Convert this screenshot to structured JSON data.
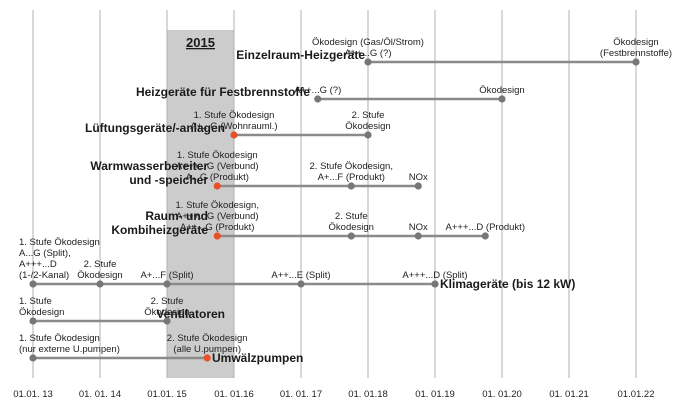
{
  "highlight_label": "2015",
  "axis_labels": [
    "01.01. 13",
    "01. 01. 14",
    "01.01. 15",
    "01. 01.16",
    "01. 01. 17",
    "01. 01.18",
    "01. 01.19",
    "01. 01.20",
    "01. 01.21",
    "01.01.22"
  ],
  "colors": {
    "line": "#8a8a8a",
    "grid": "#b0b0b0",
    "highlight": "#cccccc",
    "milestone": "#777777",
    "current": "#e8502a"
  },
  "rows": [
    {
      "name": "einzelraum",
      "label_lines": [
        "Einzelraum-Heizgeräte"
      ],
      "start": 5,
      "end": 9,
      "milestones": [
        {
          "t": 5,
          "color": "grey",
          "text": [
            "Ökodesign (Gas/Öl/Strom)",
            "A++...G (?)"
          ]
        },
        {
          "t": 9,
          "color": "grey",
          "text": [
            "Ökodesign",
            "(Festbrennstoffe)"
          ]
        }
      ]
    },
    {
      "name": "festbrennstoffe",
      "label_lines": [
        "Heizgeräte für Festbrennstoffe"
      ],
      "start": 4.25,
      "end": 7,
      "milestones": [
        {
          "t": 4.25,
          "color": "grey",
          "text": [
            "A++...G (?)"
          ]
        },
        {
          "t": 7,
          "color": "grey",
          "text": [
            "Ökodesign"
          ]
        }
      ]
    },
    {
      "name": "lueftung",
      "label_lines": [
        "Lüftungsgeräte/-anlagen"
      ],
      "start": 3,
      "end": 5,
      "milestones": [
        {
          "t": 3,
          "color": "red",
          "text": [
            "1. Stufe Ökodesign",
            "A+...G  (Wohnrauml.)"
          ]
        },
        {
          "t": 5,
          "color": "grey",
          "text": [
            "2. Stufe",
            "Ökodesign"
          ]
        }
      ]
    },
    {
      "name": "warmwasser",
      "label_lines": [
        "Warmwasserbereiter",
        "und -speicher"
      ],
      "start": 2.75,
      "end": 5.75,
      "milestones": [
        {
          "t": 2.75,
          "color": "red",
          "text": [
            "1. Stufe Ökodesign",
            "A+++...G (Verbund)",
            "A...G (Produkt)"
          ]
        },
        {
          "t": 4.75,
          "color": "grey",
          "text": [
            "2. Stufe Ökodesign,",
            "A+...F (Produkt)"
          ]
        },
        {
          "t": 5.75,
          "color": "grey",
          "text": [
            "NOx"
          ]
        }
      ]
    },
    {
      "name": "raumheiz",
      "label_lines": [
        "Raum- und",
        "Kombiheizgeräte"
      ],
      "start": 2.75,
      "end": 6.75,
      "milestones": [
        {
          "t": 2.75,
          "color": "red",
          "text": [
            "1. Stufe Ökodesign,",
            "A+++...G (Verbund)",
            "A++...G (Produkt)"
          ]
        },
        {
          "t": 4.75,
          "color": "grey",
          "text": [
            "2. Stufe",
            "Ökodesign"
          ]
        },
        {
          "t": 5.75,
          "color": "grey",
          "text": [
            "NOx"
          ]
        },
        {
          "t": 6.75,
          "color": "grey",
          "text": [
            "A+++...D (Produkt)"
          ]
        }
      ]
    },
    {
      "name": "klima",
      "label_lines": [
        "Klimageräte (bis 12 kW)"
      ],
      "start": 0,
      "end": 6,
      "milestones": [
        {
          "t": 0,
          "color": "grey",
          "text": [
            "1. Stufe Ökodesign",
            "A...G (Split),",
            "A+++...D",
            "(1-/2-Kanal)"
          ]
        },
        {
          "t": 1,
          "color": "grey",
          "text": [
            "2. Stufe",
            "Ökodesign"
          ]
        },
        {
          "t": 2,
          "color": "grey",
          "text": [
            "A+...F (Split)"
          ]
        },
        {
          "t": 4,
          "color": "grey",
          "text": [
            "A++...E (Split)"
          ]
        },
        {
          "t": 6,
          "color": "grey",
          "text": [
            "A+++...D (Split)"
          ]
        }
      ]
    },
    {
      "name": "ventilatoren",
      "label_lines": [
        "Ventilatoren"
      ],
      "start": 0,
      "end": 2,
      "milestones": [
        {
          "t": 0,
          "color": "grey",
          "text": [
            "1. Stufe",
            "Ökodesign"
          ]
        },
        {
          "t": 2,
          "color": "grey",
          "text": [
            "2. Stufe",
            "Ökodesign"
          ]
        }
      ]
    },
    {
      "name": "umwaelzpumpen",
      "label_lines": [
        "Umwälzpumpen"
      ],
      "start": 0,
      "end": 2.6,
      "milestones": [
        {
          "t": 0,
          "color": "grey",
          "text": [
            "1. Stufe Ökodesign",
            "(nur externe U.pumpen)"
          ]
        },
        {
          "t": 2.6,
          "color": "red",
          "text": [
            "2. Stufe Ökodesign",
            "(alle U.pumpen)"
          ]
        }
      ]
    }
  ]
}
